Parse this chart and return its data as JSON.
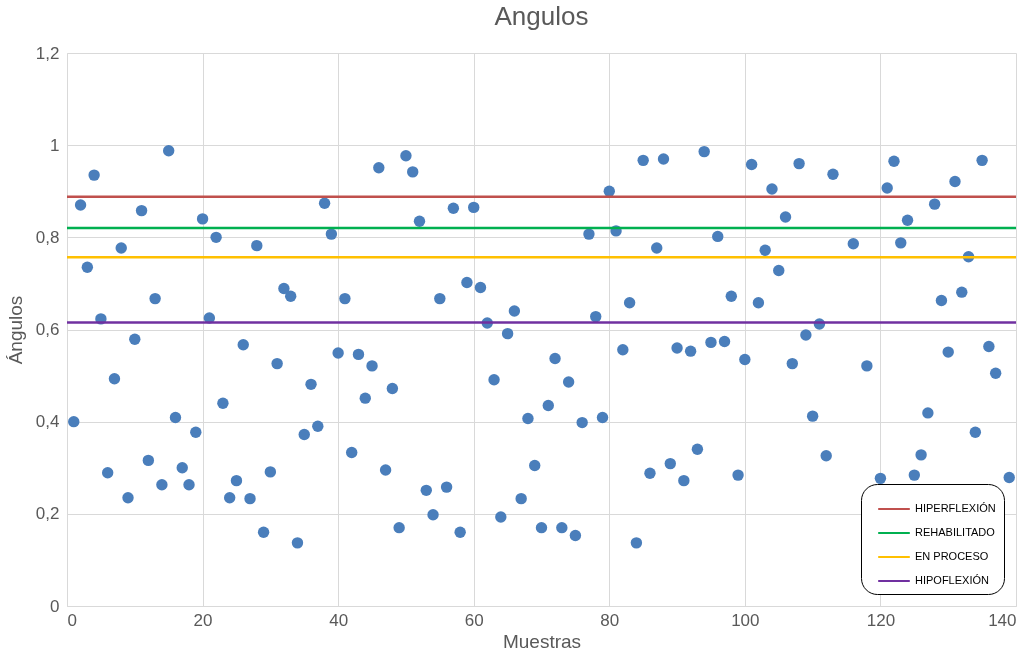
{
  "chart_data": {
    "type": "scatter",
    "title": "Angulos",
    "xlabel": "Muestras",
    "ylabel": "Ángulos",
    "xlim": [
      0,
      140
    ],
    "xticks": [
      0,
      20,
      40,
      60,
      80,
      100,
      120,
      140
    ],
    "ylim": [
      0,
      1.2
    ],
    "yticks": [
      0,
      {
        "value": 0.2,
        "label": "0,2"
      },
      {
        "value": 0.4,
        "label": "0,4"
      },
      {
        "value": 0.6,
        "label": "0,6"
      },
      {
        "value": 0.8,
        "label": "0,8"
      },
      1,
      {
        "value": 1.2,
        "label": "1,2"
      }
    ],
    "grid": true,
    "legend": "bottom right",
    "marker": "circle",
    "series": [
      {
        "color": "#4a7ebb",
        "x": [
          1,
          2,
          3,
          4,
          5,
          6,
          7,
          8,
          9,
          10,
          11,
          12,
          13,
          14,
          15,
          16,
          17,
          18,
          19,
          20,
          21,
          22,
          23,
          24,
          25,
          26,
          27,
          28,
          29,
          30,
          31,
          32,
          33,
          34,
          35,
          36,
          37,
          38,
          39,
          40,
          41,
          42,
          43,
          44,
          45,
          46,
          47,
          48,
          49,
          50,
          51,
          52,
          53,
          54,
          55,
          56,
          57,
          58,
          59,
          60,
          61,
          62,
          63,
          64,
          65,
          66,
          67,
          68,
          69,
          70,
          71,
          72,
          73,
          74,
          75,
          76,
          77,
          78,
          79,
          80,
          81,
          82,
          83,
          84,
          85,
          86,
          87,
          88,
          89,
          90,
          91,
          92,
          93,
          94,
          95,
          96,
          97,
          98,
          99,
          100,
          101,
          102,
          103,
          104,
          105,
          106,
          107,
          108,
          109,
          110,
          111,
          112,
          113,
          116,
          118,
          120,
          121,
          122,
          123,
          124,
          125,
          126,
          127,
          128,
          129,
          130,
          131,
          132,
          133,
          134,
          135,
          136,
          137,
          139
        ],
        "values": [
          0.4,
          0.87,
          0.735,
          0.935,
          0.623,
          0.289,
          0.493,
          0.777,
          0.235,
          0.579,
          0.858,
          0.316,
          0.667,
          0.263,
          0.988,
          0.409,
          0.3,
          0.263,
          0.377,
          0.84,
          0.625,
          0.8,
          0.44,
          0.235,
          0.272,
          0.567,
          0.233,
          0.782,
          0.16,
          0.291,
          0.526,
          0.689,
          0.672,
          0.137,
          0.372,
          0.481,
          0.39,
          0.874,
          0.807,
          0.549,
          0.667,
          0.333,
          0.546,
          0.451,
          0.521,
          0.951,
          0.295,
          0.472,
          0.17,
          0.977,
          0.942,
          0.835,
          0.251,
          0.198,
          0.667,
          0.258,
          0.863,
          0.16,
          0.702,
          0.865,
          0.691,
          0.614,
          0.491,
          0.193,
          0.591,
          0.64,
          0.233,
          0.407,
          0.305,
          0.17,
          0.435,
          0.537,
          0.17,
          0.486,
          0.153,
          0.398,
          0.807,
          0.628,
          0.409,
          0.9,
          0.814,
          0.556,
          0.658,
          0.137,
          0.967,
          0.288,
          0.777,
          0.97,
          0.309,
          0.56,
          0.272,
          0.553,
          0.34,
          0.986,
          0.572,
          0.802,
          0.574,
          0.672,
          0.284,
          0.535,
          0.958,
          0.658,
          0.772,
          0.905,
          0.728,
          0.844,
          0.526,
          0.96,
          0.588,
          0.412,
          0.612,
          0.326,
          0.937,
          0.786,
          0.521,
          0.277,
          0.907,
          0.965,
          0.788,
          0.837,
          0.284,
          0.328,
          0.419,
          0.872,
          0.663,
          0.551,
          0.921,
          0.681,
          0.758,
          0.377,
          0.967,
          0.563,
          0.505,
          0.279
        ]
      }
    ],
    "ref_lines": [
      {
        "axis": "y",
        "value": 0.888,
        "label": "HIPERFLEXIÓN",
        "color": "#c0504d"
      },
      {
        "axis": "y",
        "value": 0.82,
        "label": "REHABILITADO",
        "color": "#00b050"
      },
      {
        "axis": "y",
        "value": 0.757,
        "label": "EN PROCESO",
        "color": "#ffc000"
      },
      {
        "axis": "y",
        "value": 0.615,
        "label": "HIPOFLEXIÓN",
        "color": "#7030a0"
      }
    ]
  }
}
